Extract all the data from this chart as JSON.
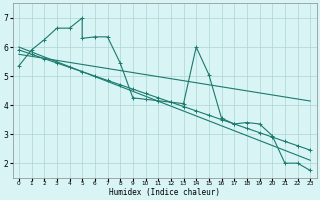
{
  "title": "",
  "xlabel": "Humidex (Indice chaleur)",
  "bg_color": "#d8f4f4",
  "grid_color": "#aed4d4",
  "line_color": "#1a7a6e",
  "xlim": [
    -0.5,
    23.5
  ],
  "ylim": [
    1.5,
    7.5
  ],
  "xticks": [
    0,
    1,
    2,
    3,
    4,
    5,
    6,
    7,
    8,
    9,
    10,
    11,
    12,
    13,
    14,
    15,
    16,
    17,
    18,
    19,
    20,
    21,
    22,
    23
  ],
  "yticks": [
    2,
    3,
    4,
    5,
    6,
    7
  ],
  "line1_x": [
    0,
    1,
    2,
    3,
    4,
    5,
    5,
    6,
    7,
    8,
    9,
    10,
    11,
    12,
    13,
    14,
    15,
    16,
    17,
    18,
    19,
    20,
    21,
    22,
    23
  ],
  "line1_y": [
    5.35,
    5.9,
    6.25,
    6.65,
    6.65,
    7.0,
    6.3,
    6.35,
    6.35,
    5.45,
    4.25,
    4.2,
    4.15,
    4.1,
    4.05,
    6.0,
    5.05,
    3.55,
    3.35,
    3.4,
    3.35,
    2.95,
    2.0,
    2.0,
    1.75
  ],
  "line2_x": [
    0,
    1,
    2,
    3,
    4,
    5,
    6,
    7,
    8,
    9,
    10,
    11,
    12,
    13,
    14,
    15,
    16,
    17,
    18,
    19,
    20,
    21,
    22,
    23
  ],
  "line2_y": [
    5.9,
    5.75,
    5.6,
    5.45,
    5.3,
    5.15,
    5.0,
    4.85,
    4.7,
    4.55,
    4.4,
    4.25,
    4.1,
    3.95,
    3.8,
    3.65,
    3.5,
    3.35,
    3.2,
    3.05,
    2.9,
    2.75,
    2.6,
    2.45
  ],
  "line3_x": [
    0,
    1,
    2,
    3,
    4,
    5,
    6,
    7,
    8,
    9,
    10,
    11,
    12,
    13,
    14,
    15,
    16,
    17,
    18,
    19,
    20,
    21,
    22,
    23
  ],
  "line3_y": [
    5.75,
    5.68,
    5.61,
    5.54,
    5.47,
    5.4,
    5.33,
    5.26,
    5.19,
    5.12,
    5.05,
    4.98,
    4.91,
    4.84,
    4.77,
    4.7,
    4.63,
    4.56,
    4.49,
    4.42,
    4.35,
    4.28,
    4.21,
    4.14
  ],
  "line4_x": [
    0,
    23
  ],
  "line4_y": [
    6.0,
    2.1
  ]
}
